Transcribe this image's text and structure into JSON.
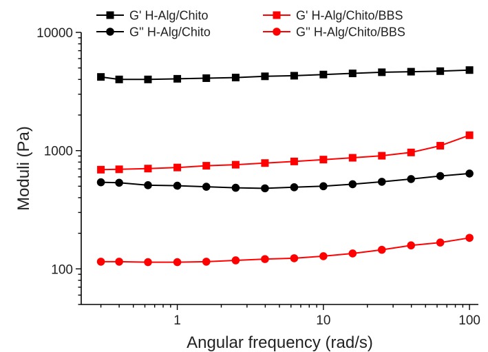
{
  "chart_data": {
    "type": "line",
    "title": "",
    "xlabel": "Angular frequency (rad/s)",
    "ylabel": "Moduli (Pa)",
    "x_scale": "log",
    "y_scale": "log",
    "xlim": [
      0.22,
      115
    ],
    "ylim": [
      50,
      10000
    ],
    "x_ticks": [
      {
        "value": 1,
        "label": "1"
      },
      {
        "value": 10,
        "label": "10"
      },
      {
        "value": 100,
        "label": "100"
      }
    ],
    "y_ticks": [
      {
        "value": 100,
        "label": "100"
      },
      {
        "value": 1000,
        "label": "1000"
      },
      {
        "value": 10000,
        "label": "10000"
      }
    ],
    "grid": false,
    "legend_position": "top",
    "x": [
      0.3,
      0.4,
      0.63,
      1.0,
      1.58,
      2.51,
      3.98,
      6.31,
      10.0,
      15.85,
      25.12,
      39.81,
      63.1,
      100.0
    ],
    "series": [
      {
        "name": "G' H-Alg/Chito",
        "color": "#000000",
        "marker": "square",
        "values": [
          4200,
          4000,
          4000,
          4050,
          4100,
          4150,
          4250,
          4300,
          4400,
          4500,
          4600,
          4650,
          4700,
          4800
        ]
      },
      {
        "name": "G'' H-Alg/Chito",
        "color": "#000000",
        "marker": "circle",
        "values": [
          540,
          535,
          510,
          505,
          495,
          485,
          480,
          490,
          500,
          520,
          545,
          575,
          610,
          640
        ]
      },
      {
        "name": "G' H-Alg/Chito/BBS",
        "color": "#ff0000",
        "marker": "square",
        "values": [
          690,
          695,
          705,
          720,
          745,
          760,
          785,
          810,
          840,
          870,
          905,
          965,
          1100,
          1350
        ]
      },
      {
        "name": "G'' H-Alg/Chito/BBS",
        "color": "#ff0000",
        "marker": "circle",
        "values": [
          115,
          115,
          114,
          114,
          115,
          118,
          121,
          123,
          128,
          135,
          145,
          158,
          167,
          183
        ]
      }
    ]
  }
}
